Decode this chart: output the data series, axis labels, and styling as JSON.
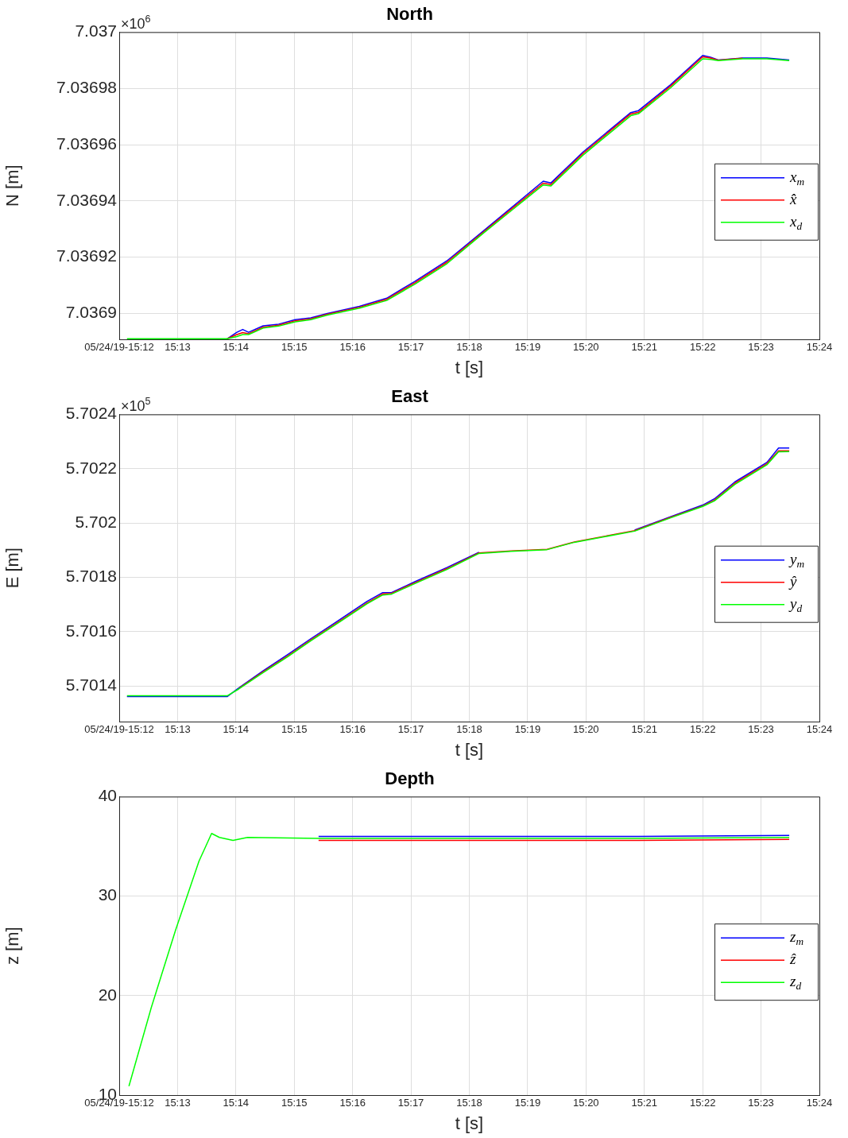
{
  "chart_data": [
    {
      "type": "line",
      "title": "North",
      "xlabel": "t [s]",
      "ylabel": "N [m]",
      "annotations": [
        "×10$^{6}$"
      ],
      "legend": "right",
      "grid": true,
      "x": [
        "--05-24T15:12:08",
        "--05-24T15:13:51",
        "--05-24T15:14:01",
        "--05-24T15:14:07",
        "--05-24T15:14:13",
        "--05-24T15:14:28",
        "--05-24T15:14:44",
        "--05-24T15:15:01",
        "--05-24T15:15:17",
        "--05-24T15:15:34",
        "--05-24T15:16:07",
        "--05-24T15:16:35",
        "--05-24T15:17:04",
        "--05-24T15:17:37",
        "--05-24T15:18:14",
        "--05-24T15:18:43",
        "--05-24T15:19:16",
        "--05-24T15:19:24",
        "--05-24T15:19:57",
        "--05-24T15:20:46",
        "--05-24T15:20:54",
        "--05-24T15:21:27",
        "--05-24T15:22:00",
        "--05-24T15:22:08",
        "--05-24T15:22:16",
        "--05-24T15:22:41",
        "--05-24T15:23:06",
        "--05-24T15:23:29"
      ],
      "xlim": [
        "--05-24T15:12",
        "--05-24T15:24"
      ],
      "xticks": [
        {
          "value": "--05-24T15:12",
          "label": "05/24/19-15:12"
        },
        {
          "value": "--05-24T15:13",
          "label": "15:13"
        },
        {
          "value": "--05-24T15:14",
          "label": "15:14"
        },
        {
          "value": "--05-24T15:15",
          "label": "15:15"
        },
        {
          "value": "--05-24T15:16",
          "label": "15:16"
        },
        {
          "value": "--05-24T15:17",
          "label": "15:17"
        },
        {
          "value": "--05-24T15:18",
          "label": "15:18"
        },
        {
          "value": "--05-24T15:19",
          "label": "15:19"
        },
        {
          "value": "--05-24T15:20",
          "label": "15:20"
        },
        {
          "value": "--05-24T15:21",
          "label": "15:21"
        },
        {
          "value": "--05-24T15:22",
          "label": "15:22"
        },
        {
          "value": "--05-24T15:23",
          "label": "15:23"
        },
        {
          "value": "--05-24T15:24",
          "label": "15:24"
        }
      ],
      "ylim": [
        7.0368908,
        7.037
      ],
      "yticks": [
        7.0369,
        7.03692,
        7.03694,
        7.03696,
        7.03698,
        7.037
      ],
      "series": [
        {
          "name": "x$_{m}$",
          "color": "#0000ff",
          "values": [
            null,
            7.036891,
            7.0368933,
            7.0368943,
            7.0368933,
            7.0368956,
            7.0368962,
            7.0368978,
            7.0368984,
            7.0369,
            7.0369025,
            7.0369054,
            7.0369114,
            7.0369187,
            7.0369292,
            7.0369375,
            7.036947,
            7.0369464,
            7.0369574,
            7.0369714,
            7.0369721,
            7.0369813,
            7.0369917,
            7.0369911,
            7.0369901,
            7.0369908,
            7.0369908,
            7.0369901
          ]
        },
        {
          "name": "x̂",
          "color": "#ff0000",
          "values": [
            null,
            7.036891,
            7.0368925,
            7.0368932,
            7.0368928,
            7.0368951,
            7.0368958,
            7.0368974,
            7.0368981,
            7.0368997,
            7.0369022,
            7.036905,
            7.0369109,
            7.0369182,
            7.0369288,
            7.036937,
            7.0369463,
            7.0369458,
            7.0369569,
            7.0369709,
            7.0369715,
            7.0369808,
            7.0369912,
            7.0369908,
            7.03699,
            7.0369907,
            null,
            null
          ]
        },
        {
          "name": "x$_{d}$",
          "color": "#00ff00",
          "values": [
            7.036891,
            7.036891,
            7.0368918,
            7.0368925,
            7.0368925,
            7.0368948,
            7.0368955,
            7.036897,
            7.0368978,
            7.0368994,
            7.0369019,
            7.0369046,
            7.0369104,
            7.0369177,
            7.0369284,
            7.0369365,
            7.0369457,
            7.0369453,
            7.0369563,
            7.0369703,
            7.036971,
            7.0369802,
            7.0369905,
            7.0369903,
            7.0369899,
            7.0369905,
            7.0369905,
            7.0369899
          ]
        }
      ]
    },
    {
      "type": "line",
      "title": "East",
      "xlabel": "t [s]",
      "ylabel": "E [m]",
      "annotations": [
        "×10$^{5}$"
      ],
      "legend": "right",
      "grid": true,
      "x": [
        "--05-24T15:12:08",
        "--05-24T15:13:51",
        "--05-24T15:14:03",
        "--05-24T15:14:28",
        "--05-24T15:14:53",
        "--05-24T15:15:17",
        "--05-24T15:15:42",
        "--05-24T15:16:15",
        "--05-24T15:16:31",
        "--05-24T15:16:40",
        "--05-24T15:17:04",
        "--05-24T15:17:37",
        "--05-24T15:18:10",
        "--05-24T15:18:43",
        "--05-24T15:19:20",
        "--05-24T15:19:48",
        "--05-24T15:20:50",
        "--05-24T15:21:27",
        "--05-24T15:22:00",
        "--05-24T15:22:12",
        "--05-24T15:22:33",
        "--05-24T15:23:06",
        "--05-24T15:23:18",
        "--05-24T15:23:29"
      ],
      "xlim": [
        "--05-24T15:12",
        "--05-24T15:24"
      ],
      "xticks": [
        {
          "value": "--05-24T15:12",
          "label": "05/24/19-15:12"
        },
        {
          "value": "--05-24T15:13",
          "label": "15:13"
        },
        {
          "value": "--05-24T15:14",
          "label": "15:14"
        },
        {
          "value": "--05-24T15:15",
          "label": "15:15"
        },
        {
          "value": "--05-24T15:16",
          "label": "15:16"
        },
        {
          "value": "--05-24T15:17",
          "label": "15:17"
        },
        {
          "value": "--05-24T15:18",
          "label": "15:18"
        },
        {
          "value": "--05-24T15:19",
          "label": "15:19"
        },
        {
          "value": "--05-24T15:20",
          "label": "15:20"
        },
        {
          "value": "--05-24T15:21",
          "label": "15:21"
        },
        {
          "value": "--05-24T15:22",
          "label": "15:22"
        },
        {
          "value": "--05-24T15:23",
          "label": "15:23"
        },
        {
          "value": "--05-24T15:24",
          "label": "15:24"
        }
      ],
      "ylim": [
        5.701269,
        5.7024
      ],
      "yticks": [
        5.7014,
        5.7016,
        5.7018,
        5.702,
        5.7022,
        5.7024
      ],
      "series": [
        {
          "name": "y$_{m}$",
          "color": "#0000ff",
          "values": [
            5.701361,
            5.701361,
            5.701393,
            5.701456,
            5.701515,
            5.701574,
            5.701633,
            5.701712,
            5.701744,
            5.701744,
            5.701784,
            5.701836,
            5.701892,
            null,
            null,
            null,
            5.701974,
            5.702023,
            5.702066,
            5.702089,
            5.702151,
            5.702223,
            5.702276,
            5.702276
          ]
        },
        {
          "name": "ŷ",
          "color": "#ff0000",
          "values": [
            null,
            null,
            5.701391,
            5.701452,
            5.70151,
            5.701569,
            5.701628,
            5.701706,
            5.701739,
            5.701741,
            5.70178,
            5.701832,
            5.70189,
            5.701897,
            5.701903,
            5.70193,
            5.701972,
            5.702021,
            5.702063,
            5.702084,
            5.702146,
            5.702218,
            5.702266,
            5.702266
          ]
        },
        {
          "name": "y$_{d}$",
          "color": "#00ff00",
          "values": [
            5.701364,
            5.701364,
            5.701389,
            5.701449,
            5.701507,
            5.701566,
            5.701625,
            5.701703,
            5.701735,
            5.701738,
            5.701777,
            5.701829,
            5.701888,
            5.701896,
            5.701902,
            5.701929,
            5.70197,
            5.702019,
            5.702061,
            5.702081,
            5.702142,
            5.702214,
            5.702262,
            5.702263
          ]
        }
      ]
    },
    {
      "type": "line",
      "title": "Depth",
      "xlabel": "t [s]",
      "ylabel": "z [m]",
      "legend": "right",
      "grid": true,
      "x": [
        "--05-24T15:12:10",
        "--05-24T15:12:33",
        "--05-24T15:12:58",
        "--05-24T15:13:22",
        "--05-24T15:13:35",
        "--05-24T15:13:43",
        "--05-24T15:13:57",
        "--05-24T15:14:12",
        "--05-24T15:15:25",
        "--05-24T15:18:10",
        "--05-24T15:20:54",
        "--05-24T15:23:29"
      ],
      "xlim": [
        "--05-24T15:12",
        "--05-24T15:24"
      ],
      "xticks": [
        {
          "value": "--05-24T15:12",
          "label": "05/24/19-15:12"
        },
        {
          "value": "--05-24T15:13",
          "label": "15:13"
        },
        {
          "value": "--05-24T15:14",
          "label": "15:14"
        },
        {
          "value": "--05-24T15:15",
          "label": "15:15"
        },
        {
          "value": "--05-24T15:16",
          "label": "15:16"
        },
        {
          "value": "--05-24T15:17",
          "label": "15:17"
        },
        {
          "value": "--05-24T15:18",
          "label": "15:18"
        },
        {
          "value": "--05-24T15:19",
          "label": "15:19"
        },
        {
          "value": "--05-24T15:20",
          "label": "15:20"
        },
        {
          "value": "--05-24T15:21",
          "label": "15:21"
        },
        {
          "value": "--05-24T15:22",
          "label": "15:22"
        },
        {
          "value": "--05-24T15:23",
          "label": "15:23"
        },
        {
          "value": "--05-24T15:24",
          "label": "15:24"
        }
      ],
      "ylim": [
        10,
        40
      ],
      "yticks": [
        10,
        20,
        30,
        40
      ],
      "series": [
        {
          "name": "z$_{m}$",
          "color": "#0000ff",
          "values": [
            null,
            null,
            null,
            null,
            null,
            null,
            null,
            null,
            36,
            36,
            36,
            36.1
          ]
        },
        {
          "name": "ẑ",
          "color": "#ff0000",
          "values": [
            null,
            null,
            null,
            null,
            null,
            null,
            null,
            null,
            35.6,
            35.6,
            35.6,
            35.7
          ]
        },
        {
          "name": "z$_{d}$",
          "color": "#00ff00",
          "values": [
            10.9,
            18.8,
            26.6,
            33.5,
            36.3,
            35.9,
            35.6,
            35.9,
            35.8,
            35.8,
            35.8,
            35.9
          ]
        }
      ]
    }
  ]
}
